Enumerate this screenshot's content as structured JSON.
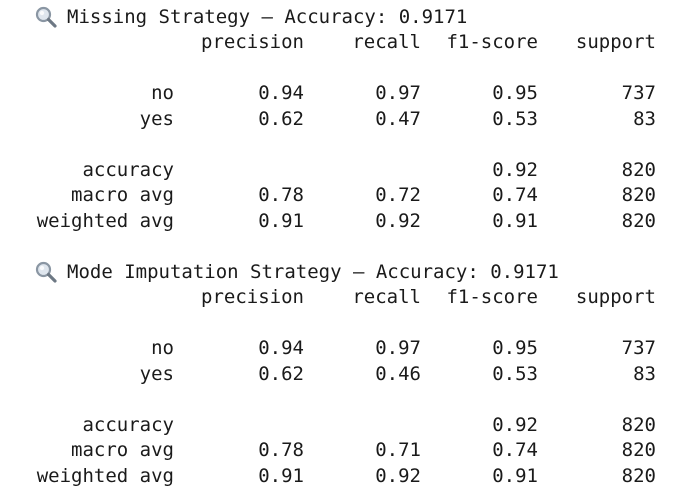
{
  "reports": [
    {
      "icon": "magnifier-icon",
      "title": "Missing Strategy – Accuracy: 0.9171",
      "headers": {
        "precision": "precision",
        "recall": "recall",
        "f1": "f1-score",
        "support": "support"
      },
      "rows": {
        "no": {
          "label": "no",
          "precision": "0.94",
          "recall": "0.97",
          "f1": "0.95",
          "support": "737"
        },
        "yes": {
          "label": "yes",
          "precision": "0.62",
          "recall": "0.47",
          "f1": "0.53",
          "support": "83"
        },
        "accuracy": {
          "label": "accuracy",
          "f1": "0.92",
          "support": "820"
        },
        "macro": {
          "label": "macro avg",
          "precision": "0.78",
          "recall": "0.72",
          "f1": "0.74",
          "support": "820"
        },
        "weighted": {
          "label": "weighted avg",
          "precision": "0.91",
          "recall": "0.92",
          "f1": "0.91",
          "support": "820"
        }
      }
    },
    {
      "icon": "magnifier-icon",
      "title": "Mode Imputation Strategy – Accuracy: 0.9171",
      "headers": {
        "precision": "precision",
        "recall": "recall",
        "f1": "f1-score",
        "support": "support"
      },
      "rows": {
        "no": {
          "label": "no",
          "precision": "0.94",
          "recall": "0.97",
          "f1": "0.95",
          "support": "737"
        },
        "yes": {
          "label": "yes",
          "precision": "0.62",
          "recall": "0.46",
          "f1": "0.53",
          "support": "83"
        },
        "accuracy": {
          "label": "accuracy",
          "f1": "0.92",
          "support": "820"
        },
        "macro": {
          "label": "macro avg",
          "precision": "0.78",
          "recall": "0.71",
          "f1": "0.74",
          "support": "820"
        },
        "weighted": {
          "label": "weighted avg",
          "precision": "0.91",
          "recall": "0.92",
          "f1": "0.91",
          "support": "820"
        }
      }
    }
  ]
}
